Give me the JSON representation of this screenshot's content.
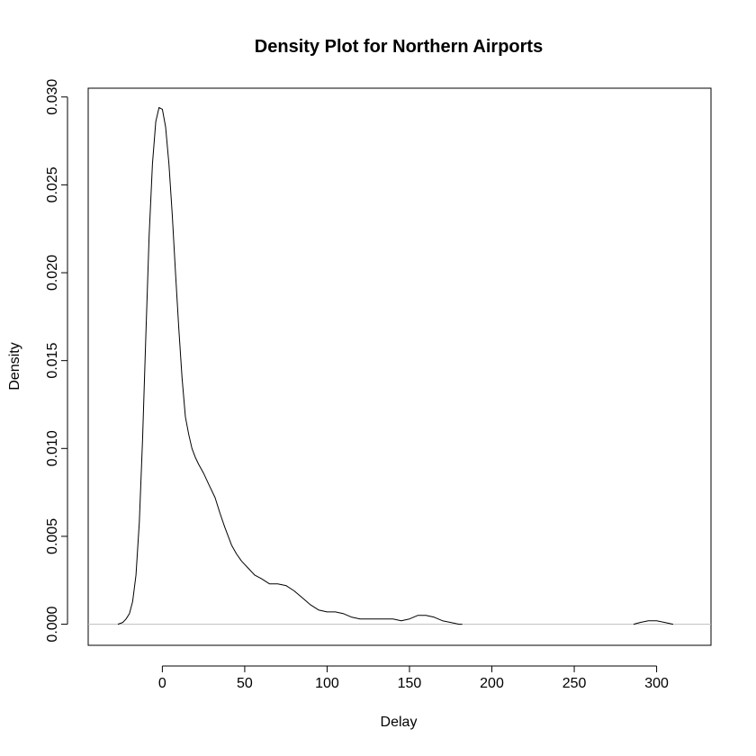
{
  "chart_data": {
    "type": "line",
    "title": "Density Plot for Northern Airports",
    "xlabel": "Delay",
    "ylabel": "Density",
    "xlim": [
      -45,
      333
    ],
    "ylim": [
      -0.0012,
      0.0305
    ],
    "x_ticks": [
      0,
      50,
      100,
      150,
      200,
      250,
      300
    ],
    "x_tick_labels": [
      "0",
      "50",
      "100",
      "150",
      "200",
      "250",
      "300"
    ],
    "y_ticks": [
      0.0,
      0.005,
      0.01,
      0.015,
      0.02,
      0.025,
      0.03
    ],
    "y_tick_labels": [
      "0.000",
      "0.005",
      "0.010",
      "0.015",
      "0.020",
      "0.025",
      "0.030"
    ],
    "grid": false,
    "baseline": {
      "y": 0,
      "color": "#bebebe"
    },
    "series": [
      {
        "color": "#000000",
        "x": [
          -27,
          -24,
          -22,
          -20,
          -18,
          -16,
          -14,
          -12,
          -10,
          -8,
          -6,
          -4,
          -2,
          0,
          2,
          4,
          6,
          8,
          10,
          12,
          14,
          16,
          18,
          20,
          22,
          25,
          28,
          32,
          35,
          38,
          40,
          42,
          45,
          48,
          52,
          56,
          60,
          65,
          70,
          75,
          80,
          85,
          90,
          95,
          100,
          105,
          110,
          115,
          120,
          125,
          130,
          135,
          140,
          145,
          150,
          155,
          160,
          165,
          170,
          175,
          180,
          182
        ],
        "y": [
          0.0,
          0.0001,
          0.0003,
          0.0006,
          0.0013,
          0.0028,
          0.0058,
          0.0105,
          0.0165,
          0.0221,
          0.0262,
          0.0286,
          0.0294,
          0.0293,
          0.0283,
          0.0262,
          0.0233,
          0.02,
          0.0168,
          0.014,
          0.0118,
          0.0108,
          0.01,
          0.0095,
          0.0091,
          0.0086,
          0.008,
          0.0072,
          0.0063,
          0.0055,
          0.005,
          0.0045,
          0.004,
          0.0036,
          0.0032,
          0.0028,
          0.0026,
          0.0023,
          0.0023,
          0.0022,
          0.0019,
          0.0015,
          0.0011,
          0.0008,
          0.0007,
          0.0007,
          0.0006,
          0.0004,
          0.0003,
          0.0003,
          0.0003,
          0.0003,
          0.0003,
          0.0002,
          0.0003,
          0.0005,
          0.0005,
          0.0004,
          0.0002,
          0.0001,
          0.0,
          0.0
        ]
      },
      {
        "color": "#000000",
        "x": [
          286,
          290,
          295,
          300,
          305,
          310
        ],
        "y": [
          0.0,
          0.0001,
          0.0002,
          0.0002,
          0.0001,
          0.0
        ]
      }
    ]
  }
}
